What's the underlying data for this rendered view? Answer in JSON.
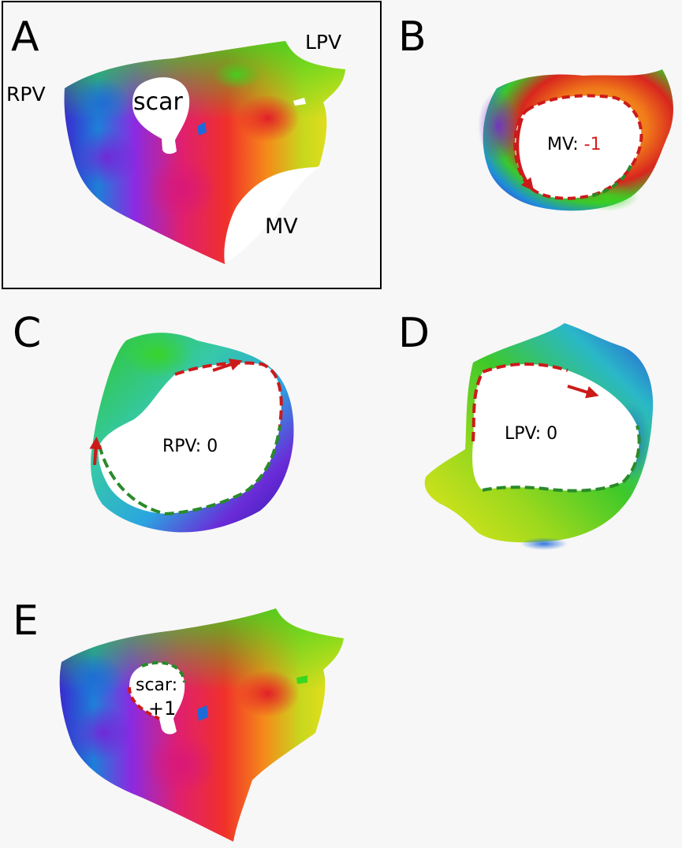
{
  "panels": {
    "a": {
      "letter": "A",
      "labels": {
        "rpv": "RPV",
        "lpv": "LPV",
        "scar": "scar",
        "mv": "MV"
      }
    },
    "b": {
      "letter": "B",
      "label_prefix": "MV: ",
      "index": "-1",
      "index_color": "#d81e1e"
    },
    "c": {
      "letter": "C",
      "label": "RPV: 0"
    },
    "d": {
      "letter": "D",
      "label": "LPV: 0"
    },
    "e": {
      "letter": "E",
      "label_prefix": "scar:",
      "index": "+1",
      "index_color": "#1f9e1f"
    }
  },
  "colors": {
    "arrow_red": "#cc1a1a",
    "arrow_green": "#2a8a2a",
    "panel_border": "#000000"
  }
}
